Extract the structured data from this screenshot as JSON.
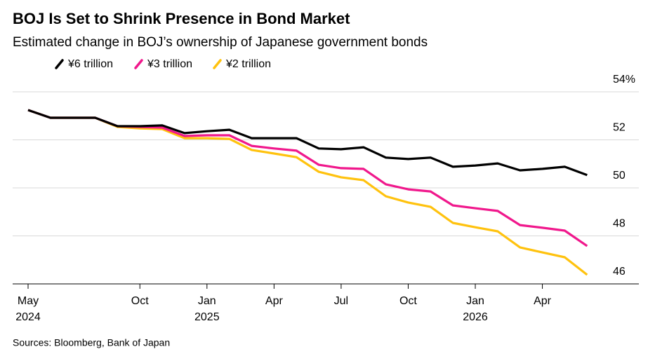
{
  "chart_data": {
    "type": "line",
    "title": "BOJ Is Set to Shrink Presence in Bond Market",
    "subtitle": "Estimated change in BOJ’s ownership of Japanese government bonds",
    "source": "Sources: Bloomberg, Bank of Japan",
    "categories": [
      "May\n2024",
      null,
      null,
      null,
      null,
      "Oct",
      null,
      null,
      "Jan\n2025",
      null,
      null,
      "Apr",
      null,
      null,
      "Jul",
      null,
      null,
      "Oct",
      null,
      null,
      "Jan\n2026",
      null,
      null,
      "Apr",
      null,
      null
    ],
    "series": [
      {
        "name": "¥6 trillion",
        "color": "#000000",
        "values": [
          53.24,
          52.92,
          52.92,
          52.92,
          52.57,
          52.57,
          52.6,
          52.28,
          52.36,
          52.42,
          52.07,
          52.07,
          52.07,
          51.64,
          51.61,
          51.69,
          51.26,
          51.2,
          51.26,
          50.88,
          50.93,
          51.02,
          50.73,
          50.79,
          50.88,
          50.53
        ]
      },
      {
        "name": "¥3 trillion",
        "color": "#f0188c",
        "values": [
          53.24,
          52.92,
          52.92,
          52.92,
          52.57,
          52.54,
          52.51,
          52.16,
          52.19,
          52.19,
          51.75,
          51.64,
          51.55,
          50.96,
          50.82,
          50.79,
          50.15,
          49.94,
          49.85,
          49.27,
          49.15,
          49.04,
          48.45,
          48.34,
          48.22,
          47.58
        ]
      },
      {
        "name": "¥2 trillion",
        "color": "#ffc20e",
        "values": [
          53.24,
          52.92,
          52.92,
          52.92,
          52.54,
          52.48,
          52.45,
          52.07,
          52.07,
          52.04,
          51.58,
          51.43,
          51.28,
          50.67,
          50.44,
          50.32,
          49.65,
          49.39,
          49.21,
          48.54,
          48.36,
          48.19,
          47.52,
          47.31,
          47.11,
          46.38
        ]
      }
    ],
    "ylim": [
      46,
      54
    ],
    "yticks": [
      46,
      48,
      50,
      52,
      {
        "value": 54,
        "label": "54%"
      }
    ],
    "grid": true
  }
}
